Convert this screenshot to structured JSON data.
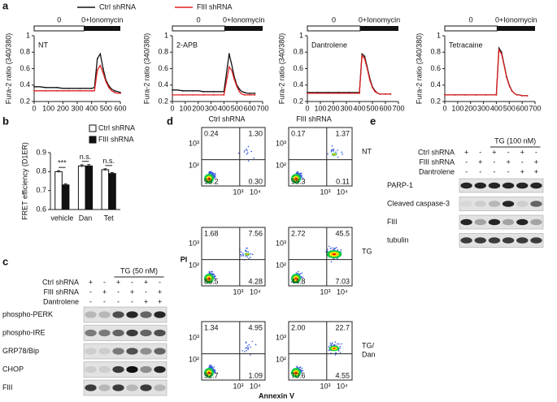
{
  "panel_labels": [
    "a",
    "b",
    "c",
    "d",
    "e"
  ],
  "chart_data": [
    {
      "type": "line",
      "annotation": "NT",
      "phases": [
        "0",
        "0+Ionomycin"
      ],
      "y_label": "Fura-2 ratio (340/380)",
      "x": [
        0,
        40,
        80,
        120,
        160,
        200,
        240,
        280,
        320,
        360,
        400,
        420,
        440,
        460,
        480,
        500,
        520,
        540,
        560,
        580,
        600
      ],
      "series": [
        {
          "name": "Ctrl shRNA",
          "color": "#111111",
          "values": [
            0.38,
            0.38,
            0.37,
            0.37,
            0.37,
            0.36,
            0.36,
            0.36,
            0.36,
            0.36,
            0.36,
            0.37,
            0.72,
            0.78,
            0.6,
            0.46,
            0.39,
            0.35,
            0.33,
            0.32,
            0.31
          ]
        },
        {
          "name": "FlII shRNA",
          "color": "#e02020",
          "values": [
            0.33,
            0.33,
            0.33,
            0.33,
            0.33,
            0.33,
            0.33,
            0.33,
            0.33,
            0.33,
            0.33,
            0.33,
            0.58,
            0.64,
            0.55,
            0.44,
            0.37,
            0.33,
            0.31,
            0.3,
            0.3
          ]
        }
      ],
      "xlim": [
        0,
        600
      ],
      "xticks": [
        0,
        100,
        200,
        300,
        400,
        500,
        600
      ],
      "ylim": [
        0.2,
        1
      ],
      "yticks": [
        0.2,
        0.4,
        0.6,
        0.8,
        1
      ]
    },
    {
      "type": "line",
      "annotation": "2-APB",
      "phases": [
        "0",
        "0+Ionomycin"
      ],
      "y_label": "Fura-2 ratio (340/380)",
      "x": [
        0,
        40,
        80,
        120,
        160,
        200,
        240,
        280,
        320,
        360,
        400,
        420,
        440,
        460,
        480,
        500,
        520,
        540,
        560,
        580,
        600,
        620,
        640
      ],
      "series": [
        {
          "color": "#111111",
          "values": [
            0.34,
            0.34,
            0.33,
            0.33,
            0.33,
            0.33,
            0.32,
            0.32,
            0.32,
            0.32,
            0.32,
            0.55,
            0.78,
            0.65,
            0.5,
            0.4,
            0.35,
            0.32,
            0.31,
            0.3,
            0.3,
            0.3,
            0.3
          ]
        },
        {
          "color": "#e02020",
          "values": [
            0.28,
            0.28,
            0.28,
            0.28,
            0.28,
            0.28,
            0.28,
            0.28,
            0.28,
            0.28,
            0.28,
            0.45,
            0.62,
            0.58,
            0.47,
            0.38,
            0.32,
            0.29,
            0.28,
            0.28,
            0.28,
            0.28,
            0.28
          ]
        }
      ],
      "xlim": [
        0,
        700
      ],
      "xticks": [
        0,
        100,
        200,
        300,
        400,
        500,
        600,
        700
      ],
      "ylim": [
        0.2,
        1
      ],
      "yticks": [
        0.2,
        0.4,
        0.6,
        0.8,
        1
      ]
    },
    {
      "type": "line",
      "annotation": "Dantrolene",
      "phases": [
        "0",
        "0+Ionomycin"
      ],
      "y_label": "Fura-2 ratio (340/380)",
      "x": [
        0,
        40,
        80,
        120,
        160,
        200,
        240,
        280,
        320,
        360,
        400,
        420,
        440,
        460,
        480,
        500,
        520,
        540,
        560,
        580,
        600,
        620,
        640
      ],
      "series": [
        {
          "color": "#111111",
          "values": [
            0.31,
            0.31,
            0.31,
            0.31,
            0.31,
            0.31,
            0.31,
            0.31,
            0.31,
            0.31,
            0.31,
            0.78,
            0.75,
            0.62,
            0.48,
            0.38,
            0.33,
            0.3,
            0.29,
            0.29,
            0.29,
            0.29,
            0.29
          ]
        },
        {
          "color": "#e02020",
          "values": [
            0.3,
            0.3,
            0.3,
            0.3,
            0.3,
            0.3,
            0.3,
            0.3,
            0.3,
            0.3,
            0.3,
            0.76,
            0.72,
            0.6,
            0.46,
            0.37,
            0.32,
            0.3,
            0.29,
            0.29,
            0.29,
            0.29,
            0.29
          ]
        }
      ],
      "xlim": [
        0,
        700
      ],
      "xticks": [
        0,
        100,
        200,
        300,
        400,
        500,
        600,
        700
      ],
      "ylim": [
        0.2,
        1
      ],
      "yticks": [
        0.2,
        0.4,
        0.6,
        0.8,
        1
      ]
    },
    {
      "type": "line",
      "annotation": "Tetracaine",
      "phases": [
        "0",
        "0+Ionomycin"
      ],
      "y_label": "Fura-2 ratio (340/380)",
      "x": [
        0,
        40,
        80,
        120,
        160,
        200,
        240,
        280,
        320,
        360,
        400,
        420,
        440,
        460,
        480,
        500,
        520,
        540,
        560,
        580,
        600,
        620,
        640
      ],
      "series": [
        {
          "color": "#111111",
          "values": [
            0.28,
            0.28,
            0.28,
            0.28,
            0.28,
            0.28,
            0.28,
            0.28,
            0.28,
            0.28,
            0.28,
            0.85,
            0.8,
            0.65,
            0.5,
            0.4,
            0.33,
            0.3,
            0.28,
            0.28,
            0.27,
            0.27,
            0.27
          ]
        },
        {
          "color": "#e02020",
          "values": [
            0.28,
            0.28,
            0.28,
            0.28,
            0.28,
            0.28,
            0.28,
            0.28,
            0.28,
            0.28,
            0.28,
            0.83,
            0.78,
            0.64,
            0.49,
            0.39,
            0.33,
            0.3,
            0.28,
            0.28,
            0.27,
            0.27,
            0.27
          ]
        }
      ],
      "xlim": [
        0,
        700
      ],
      "xticks": [
        0,
        100,
        200,
        300,
        400,
        500,
        600,
        700
      ],
      "ylim": [
        0.2,
        1
      ],
      "yticks": [
        0.2,
        0.4,
        0.6,
        0.8,
        1
      ]
    },
    {
      "type": "bar",
      "y_label": "FRET efficiency (D1ER)",
      "categories": [
        "vehicle",
        "Dan",
        "Tet"
      ],
      "series": [
        {
          "name": "Ctrl shRNA",
          "color": "#ffffff",
          "values": [
            0.8,
            0.83,
            0.81
          ],
          "errors": [
            0.005,
            0.006,
            0.005
          ]
        },
        {
          "name": "FlII shRNA",
          "color": "#111111",
          "values": [
            0.73,
            0.83,
            0.79
          ],
          "errors": [
            0.006,
            0.007,
            0.005
          ]
        }
      ],
      "annotations": [
        "***",
        "n.s.",
        "n.s."
      ],
      "ylim": [
        0.6,
        0.9
      ],
      "yticks": [
        0.6,
        0.7,
        0.8,
        0.9
      ]
    }
  ],
  "blot_c": {
    "treatment": "TG (50 nM)",
    "conditions": [
      {
        "label": "Ctrl shRNA",
        "signs": [
          "+",
          "-",
          "+",
          "-",
          "+",
          "-"
        ]
      },
      {
        "label": "FlII shRNA",
        "signs": [
          "-",
          "+",
          "-",
          "+",
          "-",
          "+"
        ]
      },
      {
        "label": "Dantrolene",
        "signs": [
          "-",
          "-",
          "-",
          "-",
          "+",
          "+"
        ]
      }
    ],
    "bands": [
      "phospho-PERK",
      "phospho-IRE",
      "GRP78/Bip",
      "CHOP",
      "FlII"
    ]
  },
  "flow_d": {
    "columns": [
      "Ctrl shRNA",
      "FlII shRNA"
    ],
    "y_axis_label": "PI",
    "x_axis_label": "Annexin V",
    "y_ticks": [
      "10³",
      "10²"
    ],
    "x_ticks": [
      "10³",
      "10⁴"
    ],
    "rows": [
      {
        "label_lines": [
          "NT"
        ],
        "quadrants": [
          [
            "0.24",
            "1.30",
            "98.2",
            "0.30"
          ],
          [
            "0.17",
            "1.37",
            "98.3",
            "0.11"
          ]
        ]
      },
      {
        "label_lines": [
          "TG"
        ],
        "quadrants": [
          [
            "1.68",
            "7.56",
            "86.5",
            "4.28"
          ],
          [
            "2.72",
            "45.5",
            "44.8",
            "7.03"
          ]
        ]
      },
      {
        "label_lines": [
          "TG/",
          "Dan"
        ],
        "quadrants": [
          [
            "1.34",
            "4.95",
            "92.7",
            "1.09"
          ],
          [
            "2.00",
            "22.7",
            "70.6",
            "4.55"
          ]
        ]
      }
    ]
  },
  "blot_e": {
    "treatment": "TG (100 nM)",
    "conditions": [
      {
        "label": "Ctrl shRNA",
        "signs": [
          "+",
          "-",
          "+",
          "-",
          "+",
          "-"
        ]
      },
      {
        "label": "FlII shRNA",
        "signs": [
          "-",
          "+",
          "-",
          "+",
          "-",
          "+"
        ]
      },
      {
        "label": "Dantrolene",
        "signs": [
          "-",
          "-",
          "-",
          "-",
          "+",
          "+"
        ]
      }
    ],
    "bands": [
      "PARP-1",
      "Cleaved caspase-3",
      "FlII",
      "tubulin"
    ]
  }
}
